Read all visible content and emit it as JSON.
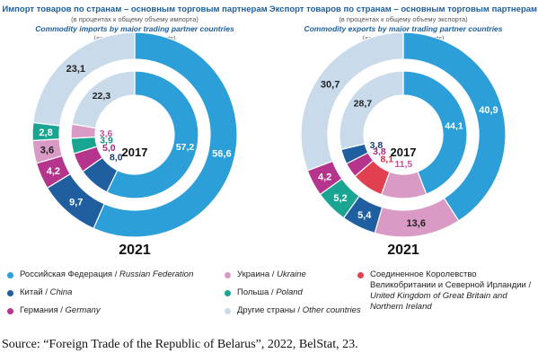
{
  "colors": {
    "russia": "#2d9fd8",
    "china": "#1f5f9f",
    "germany": "#b5358c",
    "ukraine": "#d99ac6",
    "poland": "#1aa593",
    "uk": "#e0404f",
    "other": "#c9dbeb"
  },
  "legend": [
    {
      "key": "russia",
      "ru": "Российская Федерация / ",
      "en": "Russian Federation"
    },
    {
      "key": "china",
      "ru": "Китай / ",
      "en": "China"
    },
    {
      "key": "germany",
      "ru": "Германия / ",
      "en": "Germany"
    },
    {
      "key": "ukraine",
      "ru": "Украина / ",
      "en": "Ukraine"
    },
    {
      "key": "poland",
      "ru": "Польша / ",
      "en": "Poland"
    },
    {
      "key": "other",
      "ru": "Другие страны / ",
      "en": "Other countries"
    },
    {
      "key": "uk",
      "ru": "Соединенное Королевство Великобритании и Северной Ирландии / ",
      "en": "United Kingdom of Great Britain and Northern Ireland"
    }
  ],
  "source": "Source: “Foreign Trade of the Republic of Belarus”, 2022, BelStat, 23.",
  "chart_data": [
    {
      "type": "donut",
      "title_ru": "Импорт товаров по странам – основным торговым партнерам",
      "note_ru": "(в процентах к общему объему импорта)",
      "title_en": "Commodity imports by major trading partner countries",
      "note_en": "(as percent of total imports)",
      "inner_year": "2017",
      "outer_year": "2021",
      "outer_ring": [
        {
          "key": "russia",
          "value": 56.6,
          "label": "56,6"
        },
        {
          "key": "china",
          "value": 9.7,
          "label": "9,7"
        },
        {
          "key": "germany",
          "value": 4.2,
          "label": "4,2"
        },
        {
          "key": "ukraine",
          "value": 3.6,
          "label": "3,6"
        },
        {
          "key": "poland",
          "value": 2.8,
          "label": "2,8"
        },
        {
          "key": "other",
          "value": 23.1,
          "label": "23,1"
        }
      ],
      "inner_ring": [
        {
          "key": "russia",
          "value": 57.2,
          "label": "57,2"
        },
        {
          "key": "china",
          "value": 8.0,
          "label": "8,0"
        },
        {
          "key": "germany",
          "value": 5.0,
          "label": "5,0"
        },
        {
          "key": "poland",
          "value": 3.9,
          "label": "3,9"
        },
        {
          "key": "ukraine",
          "value": 3.6,
          "label": "3,6"
        },
        {
          "key": "other",
          "value": 22.3,
          "label": "22,3"
        }
      ]
    },
    {
      "type": "donut",
      "title_ru": "Экспорт товаров по странам – основным торговым партнерам",
      "note_ru": "(в процентах к общему объему экспорта)",
      "title_en": "Commodity exports by major trading partner countries",
      "note_en": "(as percent of total exports)",
      "inner_year": "2017",
      "outer_year": "2021",
      "outer_ring": [
        {
          "key": "russia",
          "value": 40.9,
          "label": "40,9"
        },
        {
          "key": "ukraine",
          "value": 13.6,
          "label": "13,6"
        },
        {
          "key": "china",
          "value": 5.4,
          "label": "5,4"
        },
        {
          "key": "poland",
          "value": 5.2,
          "label": "5,2"
        },
        {
          "key": "germany",
          "value": 4.2,
          "label": "4,2"
        },
        {
          "key": "other",
          "value": 30.7,
          "label": "30,7"
        }
      ],
      "inner_ring": [
        {
          "key": "russia",
          "value": 44.1,
          "label": "44,1"
        },
        {
          "key": "ukraine",
          "value": 11.5,
          "label": "11,5"
        },
        {
          "key": "uk",
          "value": 8.1,
          "label": "8,1"
        },
        {
          "key": "germany",
          "value": 3.8,
          "label": "3,8"
        },
        {
          "key": "china",
          "value": 3.8,
          "label": "3,8"
        },
        {
          "key": "other",
          "value": 28.7,
          "label": "28,7"
        }
      ]
    }
  ]
}
